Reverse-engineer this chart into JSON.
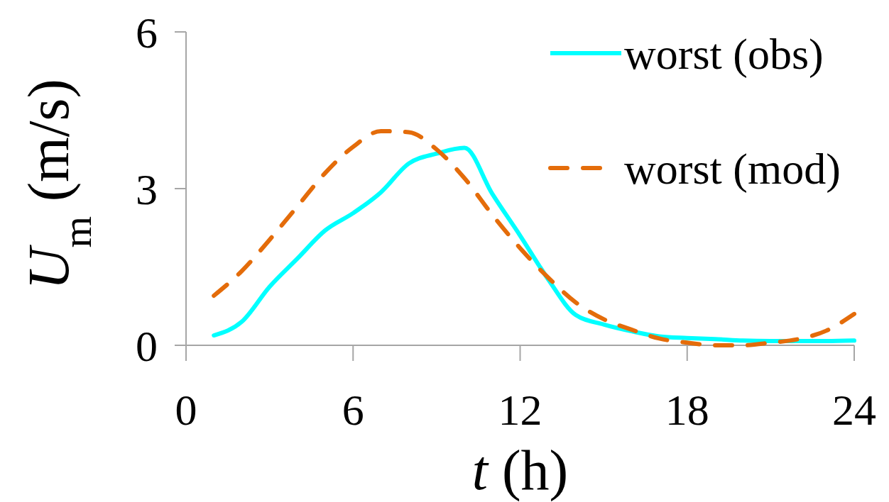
{
  "chart_data": {
    "type": "line",
    "xlabel": "t (h)",
    "ylabel": "U$_{m}$ (m/s)",
    "x": [
      1,
      2,
      3,
      4,
      5,
      6,
      7,
      8,
      9,
      10,
      11,
      12,
      13,
      14,
      15,
      16,
      17,
      18,
      19,
      20,
      21,
      22,
      23,
      24
    ],
    "series": [
      {
        "name": "worst (obs)",
        "color": "#00ffff",
        "line_style": "solid",
        "values": [
          0.19,
          0.45,
          1.12,
          1.66,
          2.2,
          2.53,
          2.93,
          3.48,
          3.67,
          3.78,
          2.9,
          2.1,
          1.27,
          0.58,
          0.4,
          0.27,
          0.17,
          0.14,
          0.12,
          0.09,
          0.08,
          0.08,
          0.08,
          0.09
        ]
      },
      {
        "name": "worst (mod)",
        "color": "#e46c0a",
        "line_style": "dashed",
        "values": [
          0.95,
          1.42,
          2.02,
          2.66,
          3.3,
          3.8,
          4.1,
          4.08,
          3.75,
          3.2,
          2.5,
          1.86,
          1.3,
          0.82,
          0.5,
          0.3,
          0.13,
          0.05,
          0.0,
          0.0,
          0.05,
          0.12,
          0.28,
          0.6
        ]
      }
    ],
    "xlim": [
      0,
      24
    ],
    "xticks": [
      0,
      6,
      12,
      18,
      24
    ],
    "ylim": [
      0,
      6
    ],
    "yticks": [
      0,
      3,
      6
    ],
    "legend": "top right"
  }
}
